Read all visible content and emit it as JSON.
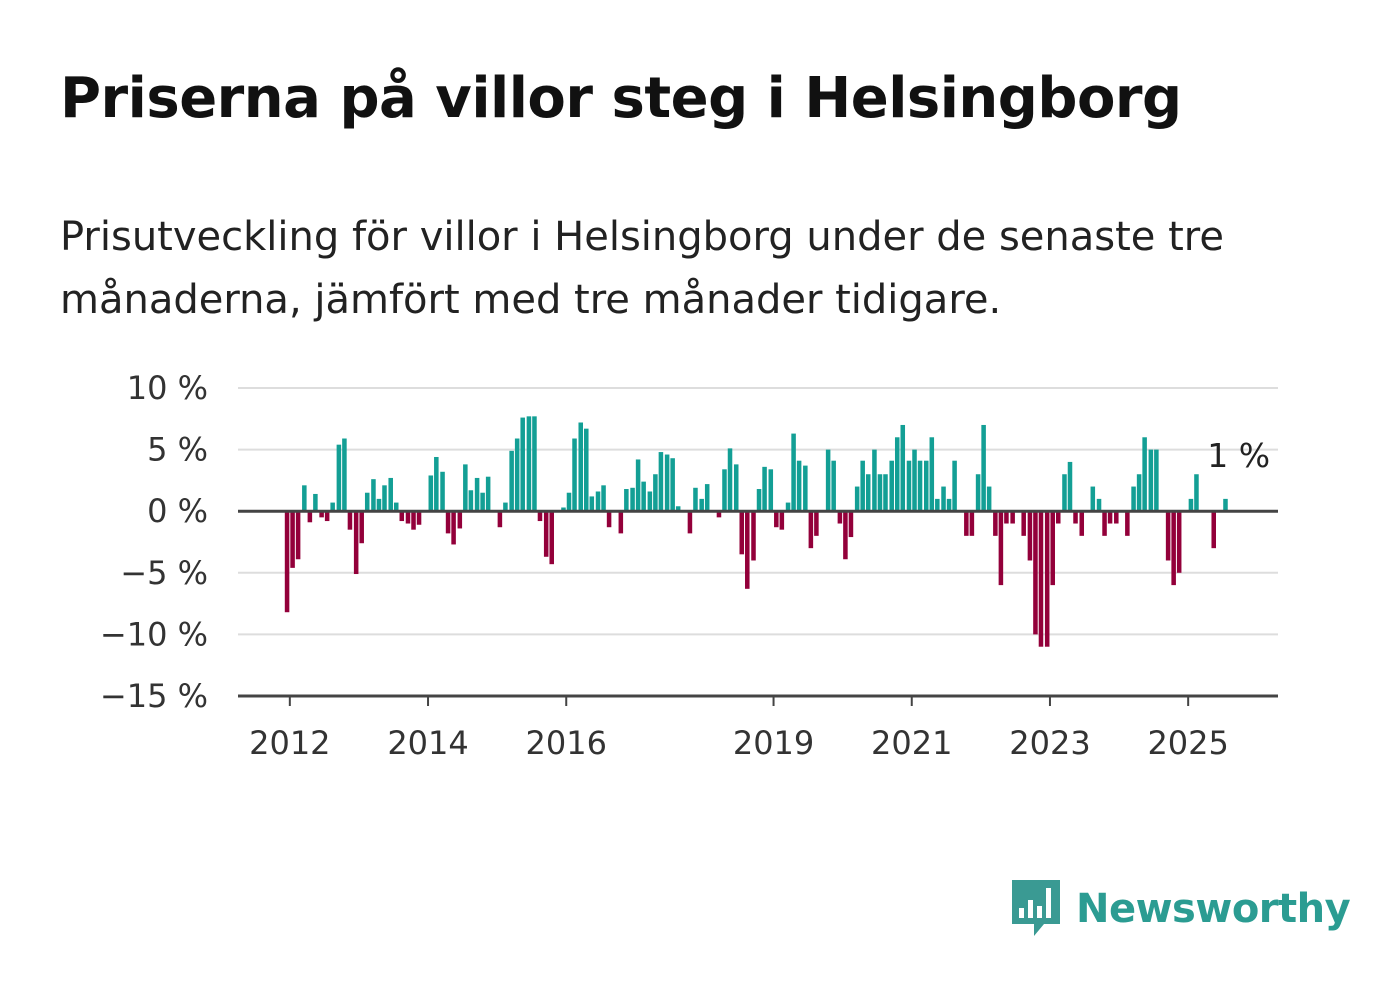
{
  "title": "Priserna på villor steg i Helsingborg",
  "subtitle": "Prisutveckling för villor i Helsingborg under de senaste tre månaderna, jämfört med tre månader tidigare.",
  "logo": {
    "text": "Newsworthy",
    "icon": "newsworthy-bar-chart-icon",
    "color": "#3a9a93"
  },
  "colors": {
    "positive": "#139f95",
    "negative": "#93003a",
    "gridline": "#dddddd",
    "axis": "#444444"
  },
  "chart_data": {
    "type": "bar",
    "title": "Priserna på villor steg i Helsingborg",
    "xlabel": "",
    "ylabel": "",
    "ylim": [
      -15,
      10
    ],
    "y_ticks": [
      10,
      5,
      0,
      -5,
      -10,
      -15
    ],
    "y_tick_labels": [
      "10 %",
      "5 %",
      "0 %",
      "−5 %",
      "−10 %",
      "−15 %"
    ],
    "x_ticks": [
      2012,
      2014,
      2016,
      2019,
      2021,
      2023,
      2025
    ],
    "x_tick_labels": [
      "2012",
      "2014",
      "2016",
      "2019",
      "2021",
      "2023",
      "2025"
    ],
    "x_range": [
      2011.25,
      2026.3
    ],
    "grid": true,
    "annotation": {
      "text": "1 %",
      "x": 2025.5,
      "y": 1
    },
    "x": [
      2011.96,
      2012.04,
      2012.12,
      2012.21,
      2012.29,
      2012.37,
      2012.46,
      2012.54,
      2012.62,
      2012.71,
      2012.79,
      2012.87,
      2012.96,
      2013.04,
      2013.12,
      2013.21,
      2013.29,
      2013.37,
      2013.46,
      2013.54,
      2013.62,
      2013.71,
      2013.79,
      2013.87,
      2013.96,
      2014.04,
      2014.12,
      2014.21,
      2014.29,
      2014.37,
      2014.46,
      2014.54,
      2014.62,
      2014.71,
      2014.79,
      2014.87,
      2014.96,
      2015.04,
      2015.12,
      2015.21,
      2015.29,
      2015.37,
      2015.46,
      2015.54,
      2015.62,
      2015.71,
      2015.79,
      2015.87,
      2015.96,
      2016.04,
      2016.12,
      2016.21,
      2016.29,
      2016.37,
      2016.46,
      2016.54,
      2016.62,
      2016.71,
      2016.79,
      2016.87,
      2016.96,
      2017.04,
      2017.12,
      2017.21,
      2017.29,
      2017.37,
      2017.46,
      2017.54,
      2017.62,
      2017.71,
      2017.79,
      2017.87,
      2017.96,
      2018.04,
      2018.12,
      2018.21,
      2018.29,
      2018.37,
      2018.46,
      2018.54,
      2018.62,
      2018.71,
      2018.79,
      2018.87,
      2018.96,
      2019.04,
      2019.12,
      2019.21,
      2019.29,
      2019.37,
      2019.46,
      2019.54,
      2019.62,
      2019.71,
      2019.79,
      2019.87,
      2019.96,
      2020.04,
      2020.12,
      2020.21,
      2020.29,
      2020.37,
      2020.46,
      2020.54,
      2020.62,
      2020.71,
      2020.79,
      2020.87,
      2020.96,
      2021.04,
      2021.12,
      2021.21,
      2021.29,
      2021.37,
      2021.46,
      2021.54,
      2021.62,
      2021.71,
      2021.79,
      2021.87,
      2021.96,
      2022.04,
      2022.12,
      2022.21,
      2022.29,
      2022.37,
      2022.46,
      2022.54,
      2022.62,
      2022.71,
      2022.79,
      2022.87,
      2022.96,
      2023.04,
      2023.12,
      2023.21,
      2023.29,
      2023.37,
      2023.46,
      2023.54,
      2023.62,
      2023.71,
      2023.79,
      2023.87,
      2023.96,
      2024.04,
      2024.12,
      2024.21,
      2024.29,
      2024.37,
      2024.46,
      2024.54,
      2024.62,
      2024.71,
      2024.79,
      2024.87,
      2024.96,
      2025.04,
      2025.12,
      2025.21,
      2025.29,
      2025.37,
      2025.46,
      2025.54
    ],
    "values": [
      -8.2,
      -4.6,
      -3.9,
      2.1,
      -0.9,
      1.4,
      -0.5,
      -0.8,
      0.7,
      5.4,
      5.9,
      -1.5,
      -5.1,
      -2.6,
      1.5,
      2.6,
      1.0,
      2.1,
      2.7,
      0.7,
      -0.8,
      -1.0,
      -1.5,
      -1.1,
      0.0,
      2.9,
      4.4,
      3.2,
      -1.8,
      -2.7,
      -1.4,
      3.8,
      1.7,
      2.7,
      1.5,
      2.8,
      0.0,
      -1.3,
      0.7,
      4.9,
      5.9,
      7.6,
      7.7,
      7.7,
      -0.8,
      -3.7,
      -4.3,
      0.0,
      0.3,
      1.5,
      5.9,
      7.2,
      6.7,
      1.2,
      1.6,
      2.1,
      -1.3,
      0.0,
      -1.8,
      1.8,
      1.9,
      4.2,
      2.4,
      1.6,
      3.0,
      4.8,
      4.6,
      4.3,
      0.4,
      0.0,
      -1.8,
      1.9,
      1.0,
      2.2,
      0.0,
      -0.5,
      3.4,
      5.1,
      3.8,
      -3.5,
      -6.3,
      -4.0,
      1.8,
      3.6,
      3.4,
      -1.3,
      -1.5,
      0.7,
      6.3,
      4.1,
      3.7,
      -3.0,
      -2.0,
      0.0,
      5.0,
      4.1,
      -1.0,
      -3.9,
      -2.1,
      2.0,
      4.1,
      3.0,
      5.0,
      3.0,
      3.0,
      4.1,
      6.0,
      7.0,
      4.1,
      5.0,
      4.1,
      4.1,
      6.0,
      1.0,
      2.0,
      1.0,
      4.1,
      0.0,
      -2.0,
      -2.0,
      3.0,
      7.0,
      2.0,
      -2.0,
      -6.0,
      -1.0,
      -1.0,
      0.0,
      -2.0,
      -4.0,
      -10.0,
      -11.0,
      -11.0,
      -6.0,
      -1.0,
      3.0,
      4.0,
      -1.0,
      -2.0,
      0.0,
      2.0,
      1.0,
      -2.0,
      -1.0,
      -1.0,
      0.0,
      -2.0,
      2.0,
      3.0,
      6.0,
      5.0,
      5.0,
      0.0,
      -4.0,
      -6.0,
      -5.0,
      0.0,
      1.0,
      3.0,
      0.0,
      0.0,
      -3.0,
      0.0,
      1.0
    ]
  }
}
